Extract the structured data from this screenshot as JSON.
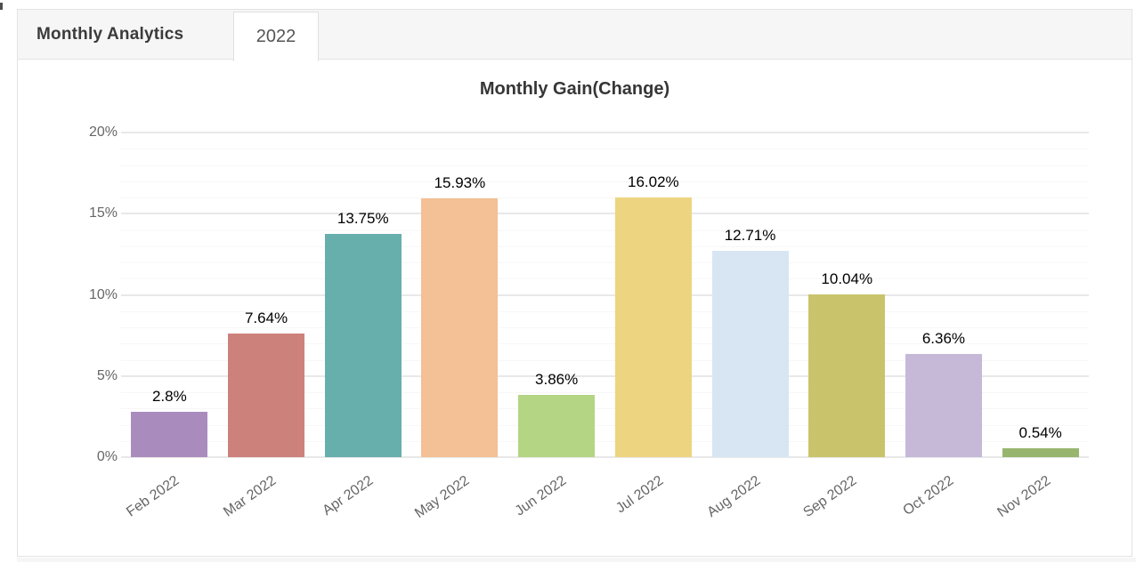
{
  "header": {
    "title": "Monthly Analytics",
    "tab_label": "2022"
  },
  "chart_data": {
    "type": "bar",
    "title": "Monthly Gain(Change)",
    "categories": [
      "Feb 2022",
      "Mar 2022",
      "Apr 2022",
      "May 2022",
      "Jun 2022",
      "Jul 2022",
      "Aug 2022",
      "Sep 2022",
      "Oct 2022",
      "Nov 2022"
    ],
    "values": [
      2.8,
      7.64,
      13.75,
      15.93,
      3.86,
      16.02,
      12.71,
      10.04,
      6.36,
      0.54
    ],
    "data_labels": [
      "2.8%",
      "7.64%",
      "13.75%",
      "15.93%",
      "3.86%",
      "16.02%",
      "12.71%",
      "10.04%",
      "6.36%",
      "0.54%"
    ],
    "bar_colors": [
      "#a98cbd",
      "#cd817b",
      "#67afac",
      "#f4c095",
      "#b4d584",
      "#edd480",
      "#d8e6f3",
      "#c9c46b",
      "#c6b9d8",
      "#98b56e"
    ],
    "ylim": [
      0,
      20
    ],
    "y_major_step": 5,
    "y_minor_step": 1,
    "y_tick_labels": [
      "0%",
      "5%",
      "10%",
      "15%",
      "20%"
    ],
    "x_label_rotation_deg": -35,
    "grid": true,
    "legend": "none",
    "colors": {
      "axis_text": "#666666",
      "grid_major": "#e8e8e8",
      "grid_minor": "#f7f7f7",
      "data_label": "#000000",
      "title_text": "#363636",
      "header_band": "#f6f6f7",
      "panel_border": "#e3e3e3"
    }
  }
}
